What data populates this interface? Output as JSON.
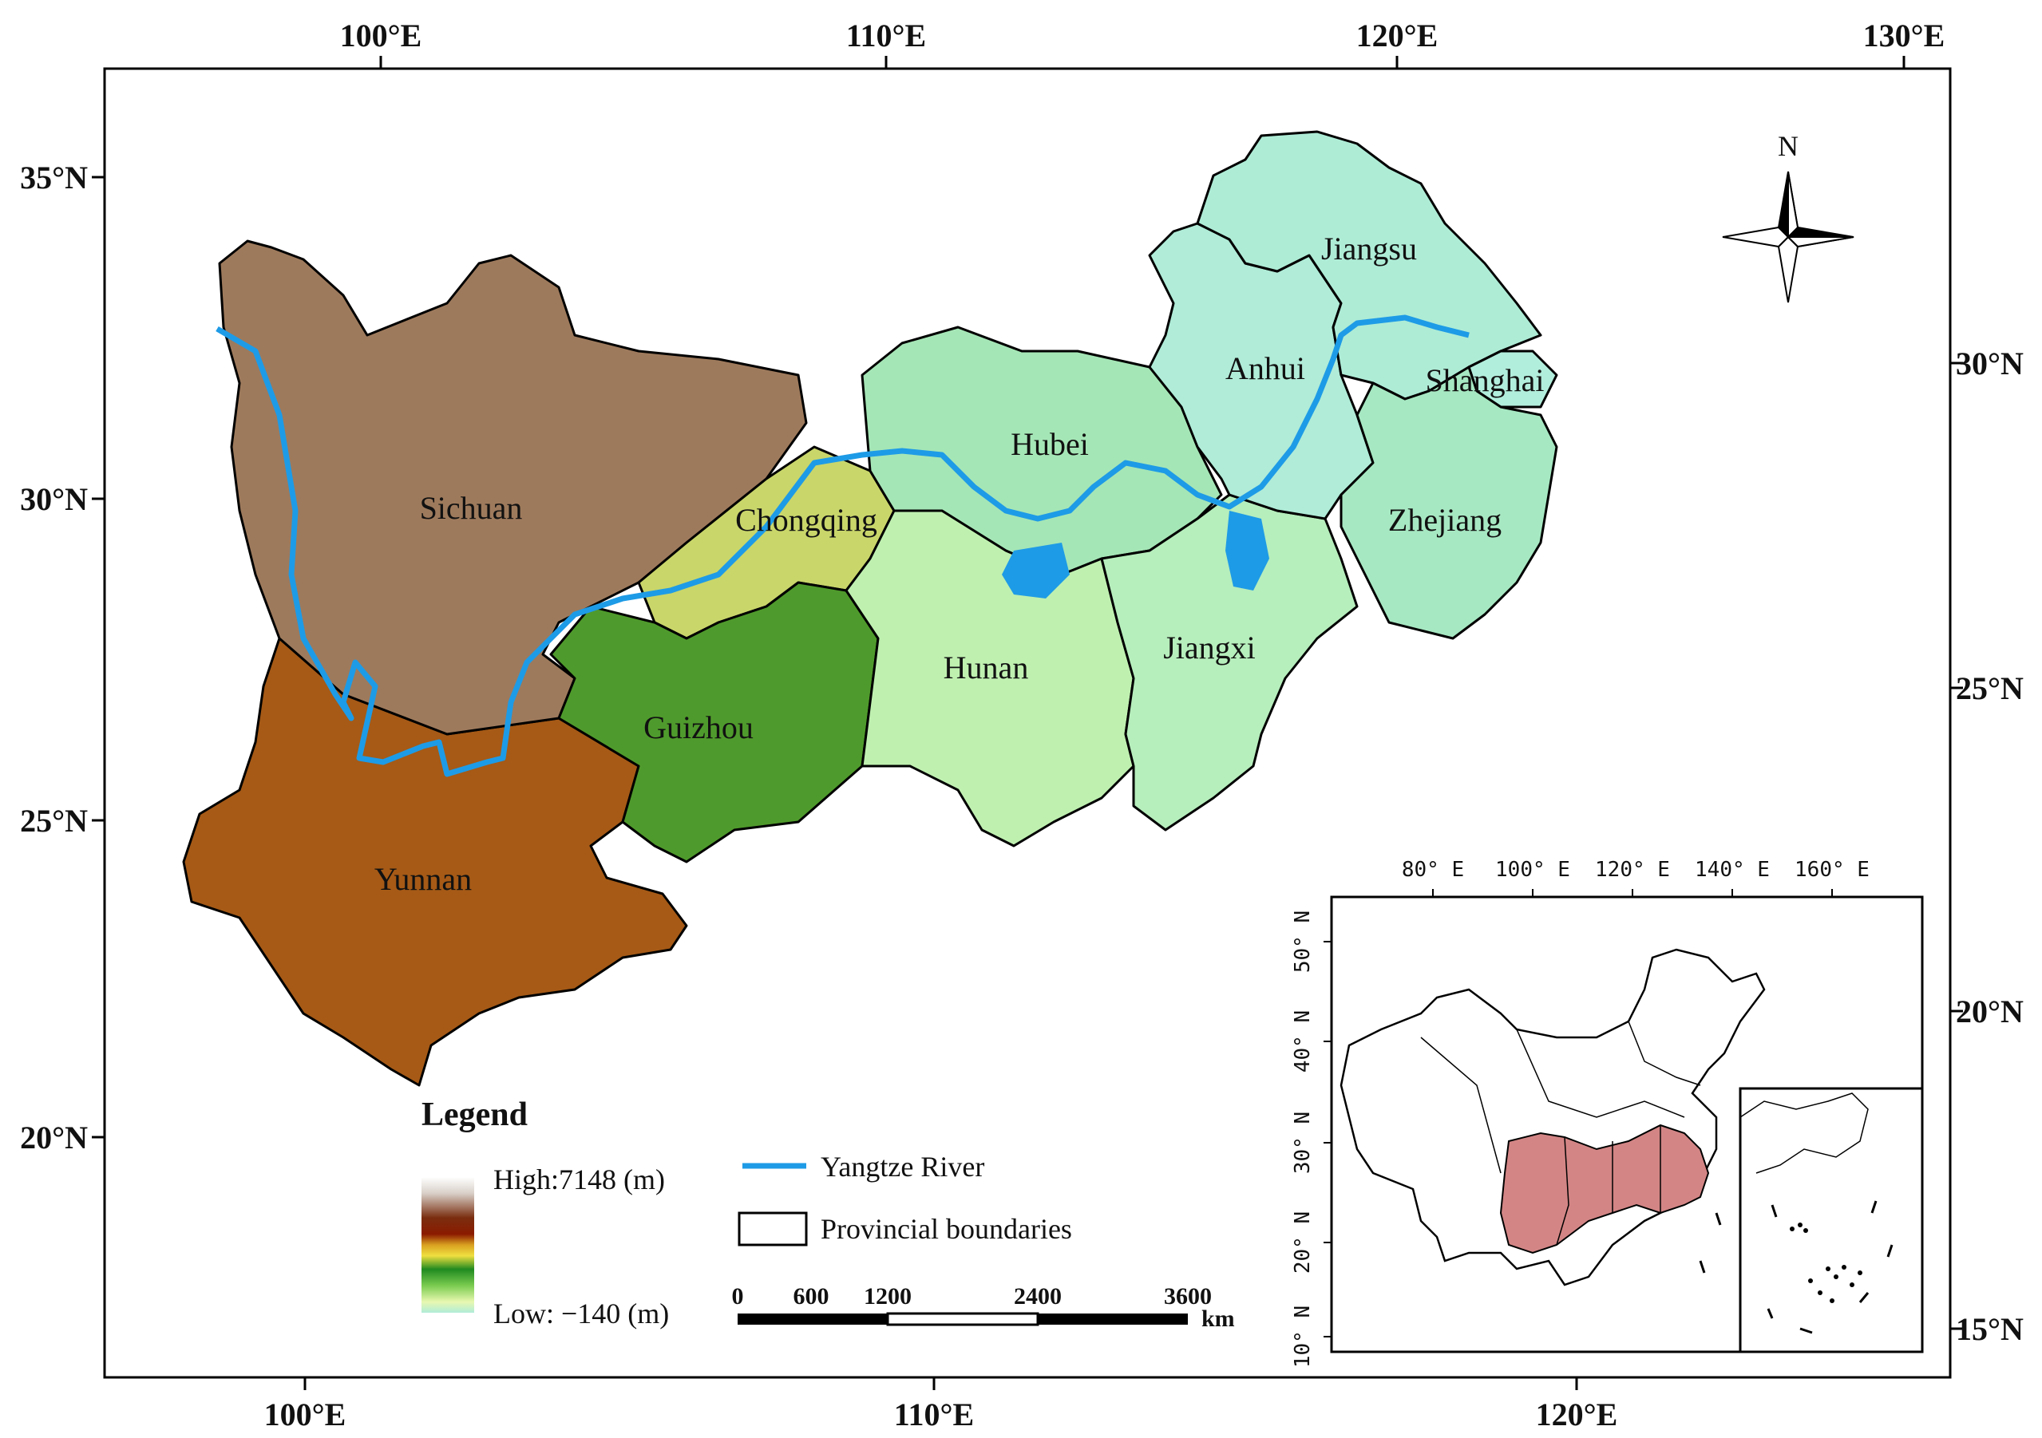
{
  "axes": {
    "top_lon": [
      "100°E",
      "110°E",
      "120°E",
      "130°E"
    ],
    "bottom_lon": [
      "100°E",
      "110°E",
      "120°E"
    ],
    "left_lat": [
      "35°N",
      "30°N",
      "25°N",
      "20°N"
    ],
    "right_lat": [
      "30°N",
      "25°N",
      "20°N",
      "15°N"
    ]
  },
  "provinces": [
    {
      "name": "Sichuan"
    },
    {
      "name": "Chongqing"
    },
    {
      "name": "Hubei"
    },
    {
      "name": "Anhui"
    },
    {
      "name": "Jiangsu"
    },
    {
      "name": "Shanghai"
    },
    {
      "name": "Zhejiang"
    },
    {
      "name": "Jiangxi"
    },
    {
      "name": "Hunan"
    },
    {
      "name": "Guizhou"
    },
    {
      "name": "Yunnan"
    }
  ],
  "north_arrow": {
    "label": "N",
    "icon": "compass-rose-icon"
  },
  "legend": {
    "title": "Legend",
    "high": "High:7148 (m)",
    "low": "Low: −140 (m)",
    "river": "Yangtze River",
    "boundaries": "Provincial boundaries",
    "colors": {
      "river": "#1e9be6",
      "boundary": "#000000"
    }
  },
  "scale_bar": {
    "ticks": [
      "0",
      "600",
      "1200",
      "2400",
      "3600"
    ],
    "unit": "km"
  },
  "inset": {
    "top_lon": [
      "80°  E",
      "100°  E",
      "120°  E",
      "140°  E",
      "160°  E"
    ],
    "left_lat": [
      "50°  N",
      "40°  N",
      "30°  N",
      "20°  N",
      "10°  N"
    ],
    "highlight_color": "#d38585"
  }
}
